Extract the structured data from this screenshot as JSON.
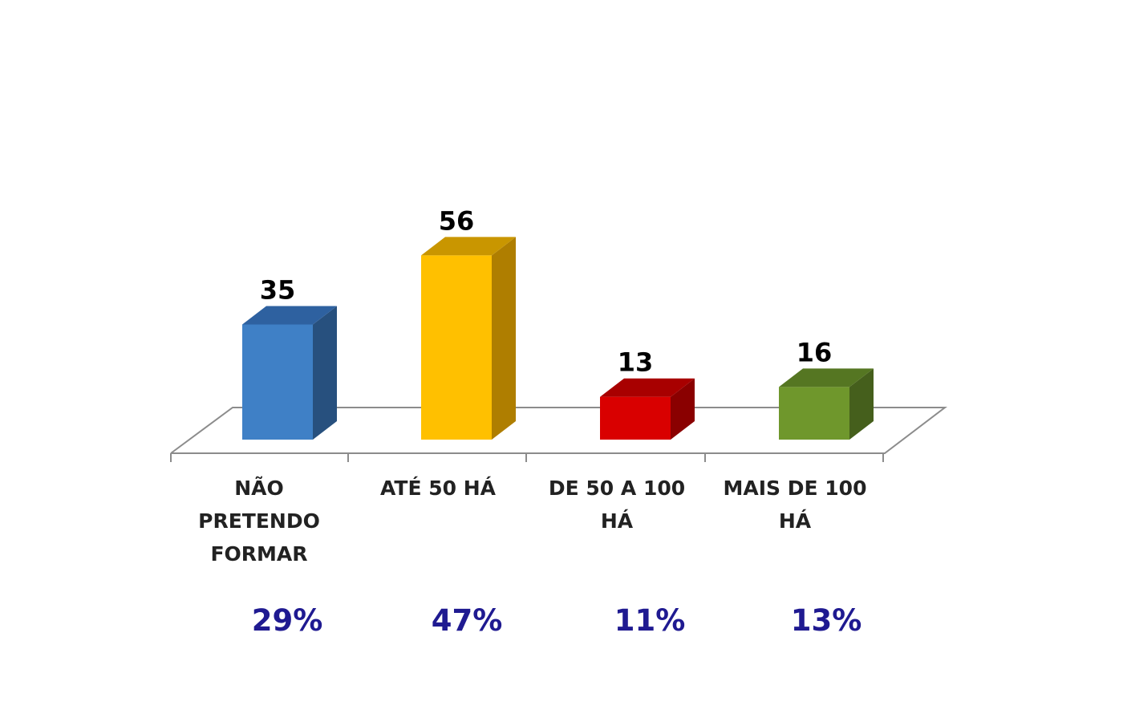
{
  "chart_data": {
    "type": "bar",
    "style": "3d-column",
    "categories": [
      [
        "NÃO",
        "PRETENDO",
        "FORMAR"
      ],
      [
        "ATÉ 50 HÁ"
      ],
      [
        "DE 50 A 100",
        "HÁ"
      ],
      [
        "MAIS DE 100",
        "HÁ"
      ]
    ],
    "values": [
      35,
      56,
      13,
      16
    ],
    "percentages": [
      "29%",
      "47%",
      "11%",
      "13%"
    ],
    "colors": {
      "front": [
        "#3F80C6",
        "#FFC000",
        "#D90000",
        "#6F972C"
      ],
      "side": [
        "#27507E",
        "#AF7E00",
        "#8A0000",
        "#455F1C"
      ],
      "top": [
        "#2E61A0",
        "#C99600",
        "#A80000",
        "#557622"
      ],
      "percentage_text": "#1F1A91",
      "floor": "#8C8C8C"
    },
    "title": "",
    "xlabel": "",
    "ylabel": "",
    "ylim": [
      0,
      60
    ],
    "grid": false,
    "legend": "none"
  }
}
